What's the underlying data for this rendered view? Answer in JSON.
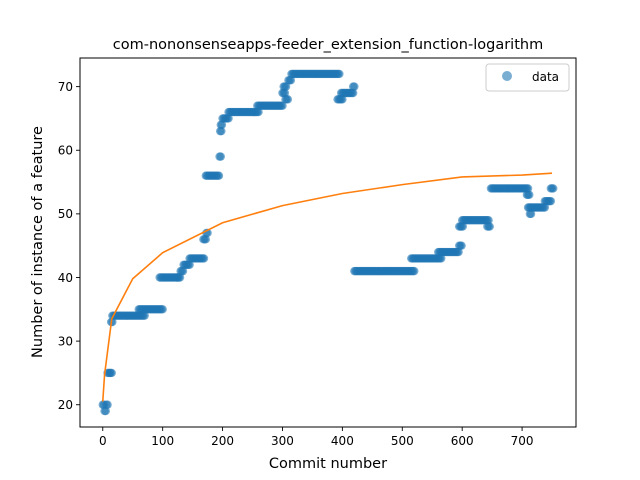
{
  "chart_data": {
    "type": "scatter",
    "title": "com-nononsenseapps-feeder_extension_function-logarithm",
    "xlabel": "Commit number",
    "ylabel": "Number of instance of a feature",
    "xlim": [
      -38,
      790
    ],
    "ylim": [
      16.5,
      74.5
    ],
    "x_ticks": [
      0,
      100,
      200,
      300,
      400,
      500,
      600,
      700
    ],
    "y_ticks": [
      20,
      30,
      40,
      50,
      60,
      70
    ],
    "grid": false,
    "legend": {
      "placement": "top-right",
      "entries": [
        "data"
      ]
    },
    "colors": {
      "data": "#1f77b4",
      "fit": "#ff7f0e"
    },
    "series": [
      {
        "name": "data",
        "kind": "scatter",
        "segments": [
          [
            0,
            3,
            20
          ],
          [
            3,
            6,
            19
          ],
          [
            6,
            8,
            20
          ],
          [
            8,
            12,
            25
          ],
          [
            13,
            15,
            25
          ],
          [
            14,
            16,
            33
          ],
          [
            16,
            70,
            34
          ],
          [
            60,
            100,
            35
          ],
          [
            95,
            125,
            40
          ],
          [
            125,
            130,
            40
          ],
          [
            130,
            135,
            41
          ],
          [
            135,
            145,
            42
          ],
          [
            145,
            170,
            43
          ],
          [
            168,
            172,
            46
          ],
          [
            173,
            175,
            47
          ],
          [
            172,
            195,
            56
          ],
          [
            195,
            197,
            59
          ],
          [
            196,
            198,
            63
          ],
          [
            197,
            200,
            64
          ],
          [
            200,
            210,
            65
          ],
          [
            210,
            260,
            66
          ],
          [
            258,
            300,
            67
          ],
          [
            300,
            305,
            69
          ],
          [
            302,
            306,
            70
          ],
          [
            305,
            310,
            68
          ],
          [
            310,
            315,
            71
          ],
          [
            315,
            395,
            72
          ],
          [
            392,
            400,
            68
          ],
          [
            398,
            418,
            69
          ],
          [
            418,
            420,
            70
          ],
          [
            420,
            520,
            41
          ],
          [
            515,
            565,
            43
          ],
          [
            560,
            595,
            44
          ],
          [
            595,
            600,
            45
          ],
          [
            595,
            602,
            48
          ],
          [
            600,
            645,
            49
          ],
          [
            642,
            647,
            48
          ],
          [
            648,
            710,
            54
          ],
          [
            708,
            712,
            53
          ],
          [
            710,
            715,
            51
          ],
          [
            713,
            716,
            50
          ],
          [
            716,
            738,
            51
          ],
          [
            738,
            748,
            52
          ],
          [
            748,
            752,
            54
          ]
        ]
      },
      {
        "name": "",
        "kind": "line",
        "function": "logarithm",
        "x": [
          0,
          3,
          15,
          50,
          100,
          200,
          300,
          400,
          500,
          600,
          700,
          750
        ],
        "y": [
          20.5,
          24.7,
          33.5,
          39.8,
          43.9,
          48.6,
          51.3,
          53.2,
          54.6,
          55.8,
          56.1,
          56.4
        ]
      }
    ]
  }
}
